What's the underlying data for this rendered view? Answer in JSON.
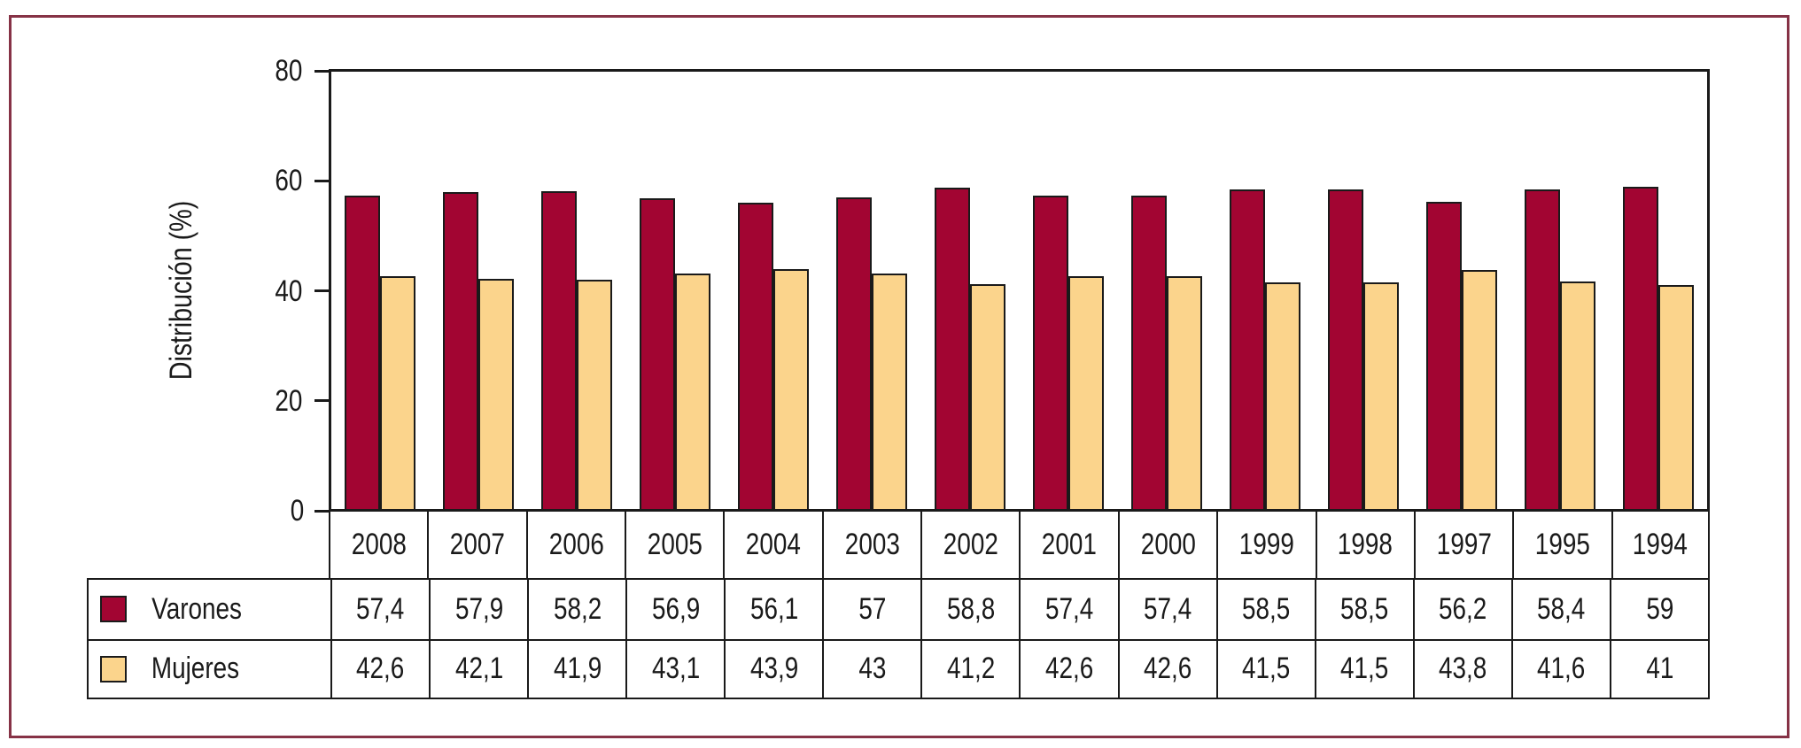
{
  "figure": {
    "frame_color": "#863246",
    "line_color": "#1a1a1a"
  },
  "chart_data": {
    "type": "bar",
    "title": "",
    "xlabel": "",
    "ylabel": "Distribución (%)",
    "ylim": [
      0,
      80
    ],
    "yticks": [
      0,
      20,
      40,
      60,
      80
    ],
    "grid": false,
    "legend_position": "table-left",
    "categories": [
      "2008",
      "2007",
      "2006",
      "2005",
      "2004",
      "2003",
      "2002",
      "2001",
      "2000",
      "1999",
      "1998",
      "1997",
      "1995",
      "1994"
    ],
    "series": [
      {
        "name": "Varones",
        "color": "#a20532",
        "values": [
          57.4,
          57.9,
          58.2,
          56.9,
          56.1,
          57,
          58.8,
          57.4,
          57.4,
          58.5,
          58.5,
          56.2,
          58.4,
          59
        ],
        "display": [
          "57,4",
          "57,9",
          "58,2",
          "56,9",
          "56,1",
          "57",
          "58,8",
          "57,4",
          "57,4",
          "58,5",
          "58,5",
          "56,2",
          "58,4",
          "59"
        ]
      },
      {
        "name": "Mujeres",
        "color": "#fbd48c",
        "values": [
          42.6,
          42.1,
          41.9,
          43.1,
          43.9,
          43,
          41.2,
          42.6,
          42.6,
          41.5,
          41.5,
          43.8,
          41.6,
          41
        ],
        "display": [
          "42,6",
          "42,1",
          "41,9",
          "43,1",
          "43,9",
          "43",
          "41,2",
          "42,6",
          "42,6",
          "41,5",
          "41,5",
          "43,8",
          "41,6",
          "41"
        ]
      }
    ]
  }
}
